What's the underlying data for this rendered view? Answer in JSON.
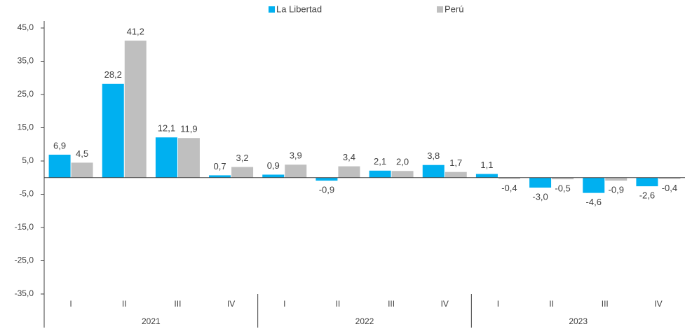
{
  "chart_data": {
    "type": "bar",
    "categories": [
      "I",
      "II",
      "III",
      "IV",
      "I",
      "II",
      "III",
      "IV",
      "I",
      "II",
      "III",
      "IV"
    ],
    "groups": [
      "2021",
      "2022",
      "2023"
    ],
    "series": [
      {
        "name": "La Libertad",
        "color": "#00b0f0",
        "values": [
          6.9,
          28.2,
          12.1,
          0.7,
          0.9,
          -0.9,
          2.1,
          3.8,
          1.1,
          -3.0,
          -4.6,
          -2.6
        ],
        "value_labels": [
          "6,9",
          "28,2",
          "12,1",
          "0,7",
          "0,9",
          "-0,9",
          "2,1",
          "3,8",
          "1,1",
          "-3,0",
          "-4,6",
          "-2,6"
        ]
      },
      {
        "name": "Perú",
        "color": "#bfbfbf",
        "values": [
          4.5,
          41.2,
          11.9,
          3.2,
          3.9,
          3.4,
          2.0,
          1.7,
          -0.4,
          -0.5,
          -0.9,
          -0.4
        ],
        "value_labels": [
          "4,5",
          "41,2",
          "11,9",
          "3,2",
          "3,9",
          "3,4",
          "2,0",
          "1,7",
          "-0,4",
          "-0,5",
          "-0,9",
          "-0,4"
        ]
      }
    ],
    "ylim": [
      -35,
      45
    ],
    "yticks": [
      {
        "value": 45,
        "label": "45,0"
      },
      {
        "value": 35,
        "label": "35,0"
      },
      {
        "value": 25,
        "label": "25,0"
      },
      {
        "value": 15,
        "label": "15,0"
      },
      {
        "value": 5,
        "label": "5,0"
      },
      {
        "value": -5,
        "label": "-5,0"
      },
      {
        "value": -15,
        "label": "-15,0"
      },
      {
        "value": -25,
        "label": "-25,0"
      },
      {
        "value": -35,
        "label": "-35,0"
      }
    ],
    "legend": "top"
  }
}
